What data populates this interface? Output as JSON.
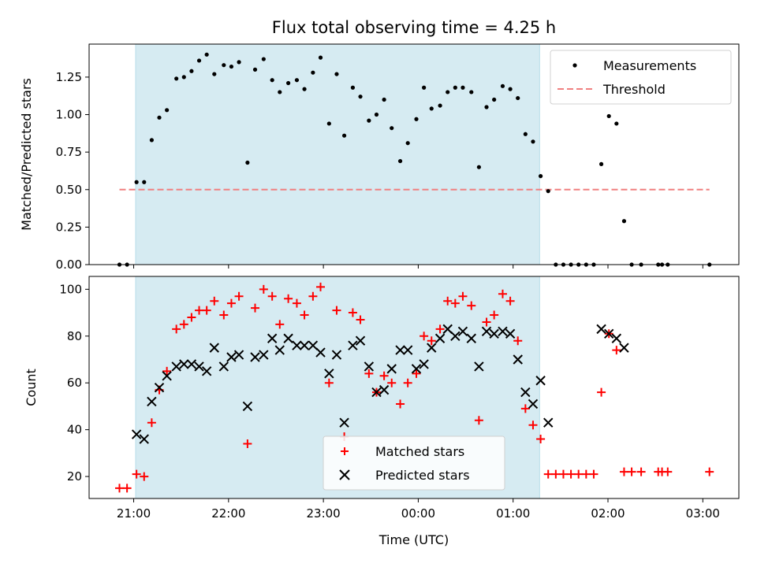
{
  "chart_data": [
    {
      "type": "scatter",
      "title": "Flux total observing time = 4.25 h",
      "xlabel": "",
      "ylabel": "Matched/Predicted stars",
      "xlim": [
        -0.47,
        6.38
      ],
      "ylim": [
        0,
        1.47
      ],
      "grid": false,
      "legend_position": "top-right",
      "xticks": [
        0,
        1,
        2,
        3,
        4,
        5,
        6
      ],
      "yticks": [
        0,
        0.25,
        0.5,
        0.75,
        1.0,
        1.25
      ],
      "ytick_labels": [
        "0.00",
        "0.25",
        "0.50",
        "0.75",
        "1.00",
        "1.25"
      ],
      "shaded_span": [
        0.02,
        4.28
      ],
      "series": [
        {
          "name": "Measurements",
          "marker": "dot",
          "color": "#000000",
          "points": [
            [
              -0.15,
              0
            ],
            [
              -0.07,
              0
            ],
            [
              0.03,
              0.55
            ],
            [
              0.11,
              0.55
            ],
            [
              0.19,
              0.83
            ],
            [
              0.27,
              0.98
            ],
            [
              0.35,
              1.03
            ],
            [
              0.45,
              1.24
            ],
            [
              0.53,
              1.25
            ],
            [
              0.61,
              1.29
            ],
            [
              0.69,
              1.36
            ],
            [
              0.77,
              1.4
            ],
            [
              0.85,
              1.27
            ],
            [
              0.95,
              1.33
            ],
            [
              1.03,
              1.32
            ],
            [
              1.11,
              1.35
            ],
            [
              1.2,
              0.68
            ],
            [
              1.28,
              1.3
            ],
            [
              1.37,
              1.37
            ],
            [
              1.46,
              1.23
            ],
            [
              1.54,
              1.15
            ],
            [
              1.63,
              1.21
            ],
            [
              1.72,
              1.23
            ],
            [
              1.8,
              1.17
            ],
            [
              1.89,
              1.28
            ],
            [
              1.97,
              1.38
            ],
            [
              2.06,
              0.94
            ],
            [
              2.14,
              1.27
            ],
            [
              2.22,
              0.86
            ],
            [
              2.31,
              1.18
            ],
            [
              2.39,
              1.12
            ],
            [
              2.48,
              0.96
            ],
            [
              2.56,
              1.0
            ],
            [
              2.64,
              1.1
            ],
            [
              2.72,
              0.91
            ],
            [
              2.81,
              0.69
            ],
            [
              2.89,
              0.81
            ],
            [
              2.98,
              0.97
            ],
            [
              3.06,
              1.18
            ],
            [
              3.14,
              1.04
            ],
            [
              3.23,
              1.06
            ],
            [
              3.31,
              1.15
            ],
            [
              3.39,
              1.18
            ],
            [
              3.47,
              1.18
            ],
            [
              3.56,
              1.15
            ],
            [
              3.64,
              0.65
            ],
            [
              3.72,
              1.05
            ],
            [
              3.8,
              1.1
            ],
            [
              3.89,
              1.19
            ],
            [
              3.97,
              1.17
            ],
            [
              4.05,
              1.11
            ],
            [
              4.13,
              0.87
            ],
            [
              4.21,
              0.82
            ],
            [
              4.29,
              0.59
            ],
            [
              4.37,
              0.49
            ],
            [
              4.45,
              0
            ],
            [
              4.53,
              0
            ],
            [
              4.61,
              0
            ],
            [
              4.69,
              0
            ],
            [
              4.77,
              0
            ],
            [
              4.85,
              0
            ],
            [
              4.93,
              0.67
            ],
            [
              5.01,
              0.99
            ],
            [
              5.09,
              0.94
            ],
            [
              5.17,
              0.29
            ],
            [
              5.25,
              0
            ],
            [
              5.35,
              0
            ],
            [
              5.53,
              0
            ],
            [
              5.57,
              0
            ],
            [
              5.63,
              0
            ],
            [
              6.07,
              0
            ]
          ]
        },
        {
          "name": "Threshold",
          "style": "dashed",
          "color": "#f08080",
          "points": [
            [
              -0.15,
              0.5
            ],
            [
              6.07,
              0.5
            ]
          ]
        }
      ]
    },
    {
      "type": "scatter",
      "title": "",
      "xlabel": "Time (UTC)",
      "ylabel": "Count",
      "xlim": [
        -0.47,
        6.38
      ],
      "ylim": [
        10.6,
        105.5
      ],
      "grid": false,
      "legend_position": "bottom-center",
      "xticks": [
        0,
        1,
        2,
        3,
        4,
        5,
        6
      ],
      "xtick_labels": [
        "21:00",
        "22:00",
        "23:00",
        "00:00",
        "01:00",
        "02:00",
        "03:00"
      ],
      "yticks": [
        20,
        40,
        60,
        80,
        100
      ],
      "ytick_labels": [
        "20",
        "40",
        "60",
        "80",
        "100"
      ],
      "shaded_span": [
        0.02,
        4.28
      ],
      "series": [
        {
          "name": "Matched stars",
          "marker": "plus",
          "color": "#ff0000",
          "points": [
            [
              -0.15,
              15
            ],
            [
              -0.07,
              15
            ],
            [
              0.03,
              21
            ],
            [
              0.11,
              20
            ],
            [
              0.19,
              43
            ],
            [
              0.27,
              57
            ],
            [
              0.35,
              65
            ],
            [
              0.45,
              83
            ],
            [
              0.53,
              85
            ],
            [
              0.61,
              88
            ],
            [
              0.69,
              91
            ],
            [
              0.77,
              91
            ],
            [
              0.85,
              95
            ],
            [
              0.95,
              89
            ],
            [
              1.03,
              94
            ],
            [
              1.11,
              97
            ],
            [
              1.2,
              34
            ],
            [
              1.28,
              92
            ],
            [
              1.37,
              100
            ],
            [
              1.46,
              97
            ],
            [
              1.54,
              85
            ],
            [
              1.63,
              96
            ],
            [
              1.72,
              94
            ],
            [
              1.8,
              89
            ],
            [
              1.89,
              97
            ],
            [
              1.97,
              101
            ],
            [
              2.06,
              60
            ],
            [
              2.14,
              91
            ],
            [
              2.22,
              37
            ],
            [
              2.31,
              90
            ],
            [
              2.39,
              87
            ],
            [
              2.48,
              64
            ],
            [
              2.56,
              56
            ],
            [
              2.64,
              63
            ],
            [
              2.72,
              60
            ],
            [
              2.81,
              51
            ],
            [
              2.89,
              60
            ],
            [
              2.98,
              64
            ],
            [
              3.06,
              80
            ],
            [
              3.14,
              78
            ],
            [
              3.23,
              83
            ],
            [
              3.31,
              95
            ],
            [
              3.39,
              94
            ],
            [
              3.47,
              97
            ],
            [
              3.56,
              93
            ],
            [
              3.64,
              44
            ],
            [
              3.72,
              86
            ],
            [
              3.8,
              89
            ],
            [
              3.89,
              98
            ],
            [
              3.97,
              95
            ],
            [
              4.05,
              78
            ],
            [
              4.13,
              49
            ],
            [
              4.21,
              42
            ],
            [
              4.29,
              36
            ],
            [
              4.37,
              21
            ],
            [
              4.45,
              21
            ],
            [
              4.53,
              21
            ],
            [
              4.61,
              21
            ],
            [
              4.69,
              21
            ],
            [
              4.77,
              21
            ],
            [
              4.85,
              21
            ],
            [
              4.93,
              56
            ],
            [
              5.01,
              81
            ],
            [
              5.09,
              74
            ],
            [
              5.17,
              22
            ],
            [
              5.25,
              22
            ],
            [
              5.35,
              22
            ],
            [
              5.53,
              22
            ],
            [
              5.57,
              22
            ],
            [
              5.63,
              22
            ],
            [
              6.07,
              22
            ]
          ]
        },
        {
          "name": "Predicted stars",
          "marker": "x",
          "color": "#000000",
          "points": [
            [
              0.03,
              38
            ],
            [
              0.11,
              36
            ],
            [
              0.19,
              52
            ],
            [
              0.27,
              58
            ],
            [
              0.35,
              63
            ],
            [
              0.45,
              67
            ],
            [
              0.53,
              68
            ],
            [
              0.61,
              68
            ],
            [
              0.69,
              67
            ],
            [
              0.77,
              65
            ],
            [
              0.85,
              75
            ],
            [
              0.95,
              67
            ],
            [
              1.03,
              71
            ],
            [
              1.11,
              72
            ],
            [
              1.2,
              50
            ],
            [
              1.28,
              71
            ],
            [
              1.37,
              72
            ],
            [
              1.46,
              79
            ],
            [
              1.54,
              74
            ],
            [
              1.63,
              79
            ],
            [
              1.72,
              76
            ],
            [
              1.8,
              76
            ],
            [
              1.89,
              76
            ],
            [
              1.97,
              73
            ],
            [
              2.06,
              64
            ],
            [
              2.14,
              72
            ],
            [
              2.22,
              43
            ],
            [
              2.31,
              76
            ],
            [
              2.39,
              78
            ],
            [
              2.48,
              67
            ],
            [
              2.56,
              56
            ],
            [
              2.64,
              57
            ],
            [
              2.72,
              66
            ],
            [
              2.81,
              74
            ],
            [
              2.89,
              74
            ],
            [
              2.98,
              66
            ],
            [
              3.06,
              68
            ],
            [
              3.14,
              75
            ],
            [
              3.23,
              79
            ],
            [
              3.31,
              83
            ],
            [
              3.39,
              80
            ],
            [
              3.47,
              82
            ],
            [
              3.56,
              79
            ],
            [
              3.64,
              67
            ],
            [
              3.72,
              82
            ],
            [
              3.8,
              81
            ],
            [
              3.89,
              82
            ],
            [
              3.97,
              81
            ],
            [
              4.05,
              70
            ],
            [
              4.13,
              56
            ],
            [
              4.21,
              51
            ],
            [
              4.29,
              61
            ],
            [
              4.37,
              43
            ],
            [
              4.93,
              83
            ],
            [
              5.01,
              81
            ],
            [
              5.09,
              79
            ],
            [
              5.17,
              75
            ]
          ]
        }
      ]
    }
  ]
}
